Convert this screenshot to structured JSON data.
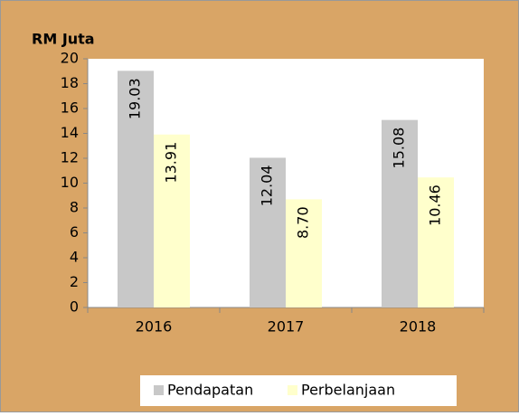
{
  "chart_data": {
    "type": "bar",
    "y_label": "RM Juta",
    "categories": [
      "2016",
      "2017",
      "2018"
    ],
    "series": [
      {
        "name": "Pendapatan",
        "color": "#c8c8c8",
        "values": [
          19.03,
          12.04,
          15.08
        ],
        "value_labels": [
          "19.03",
          "12.04",
          "15.08"
        ]
      },
      {
        "name": "Perbelanjaan",
        "color": "#ffffcc",
        "values": [
          13.91,
          8.7,
          10.46
        ],
        "value_labels": [
          "13.91",
          "8.70",
          "10.46"
        ]
      }
    ],
    "ylim": [
      0,
      20
    ],
    "yticks": [
      0,
      2,
      4,
      6,
      8,
      10,
      12,
      14,
      16,
      18,
      20
    ],
    "grid": false,
    "legend": "bottom"
  }
}
